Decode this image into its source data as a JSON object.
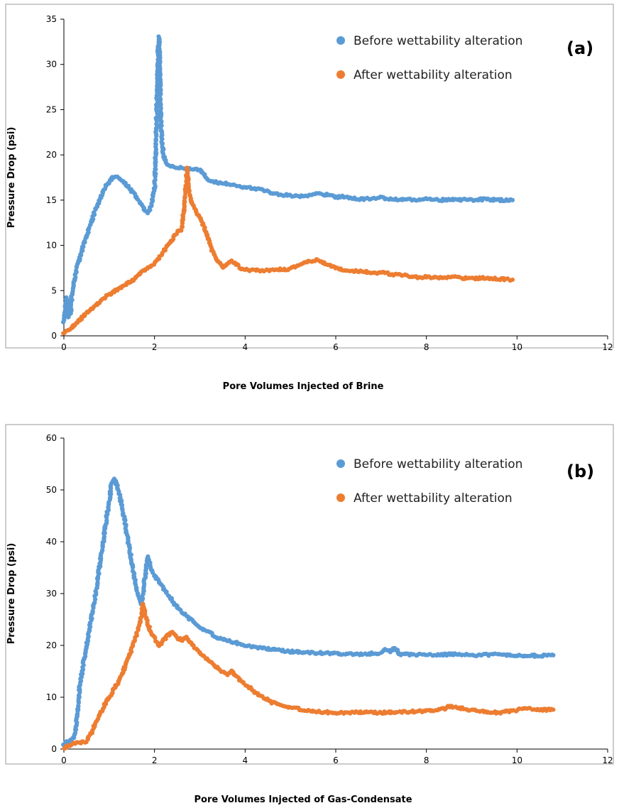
{
  "chart_data": [
    {
      "type": "scatter",
      "panel_label": "(a)",
      "xlabel": "Pore Volumes Injected of Brine",
      "ylabel": "Pressure Drop (psi)",
      "xlim": [
        0,
        12
      ],
      "ylim": [
        0,
        35
      ],
      "xticks": [
        "0",
        "2",
        "4",
        "6",
        "8",
        "10",
        "12"
      ],
      "yticks": [
        "0",
        "5",
        "10",
        "15",
        "20",
        "25",
        "30",
        "35"
      ],
      "grid": false,
      "legend_position": "top-right",
      "series": [
        {
          "name": "Before wettability alteration",
          "color": "#5B9BD5",
          "points": [
            [
              0,
              1.5
            ],
            [
              0.03,
              3.0
            ],
            [
              0.05,
              4.2
            ],
            [
              0.08,
              3.0
            ],
            [
              0.1,
              2.0
            ],
            [
              0.12,
              4.0
            ],
            [
              0.15,
              2.5
            ],
            [
              0.18,
              4.5
            ],
            [
              0.2,
              5.0
            ],
            [
              0.25,
              6.5
            ],
            [
              0.3,
              7.8
            ],
            [
              0.4,
              9.5
            ],
            [
              0.5,
              11.0
            ],
            [
              0.6,
              12.5
            ],
            [
              0.7,
              14.0
            ],
            [
              0.8,
              15.2
            ],
            [
              0.9,
              16.3
            ],
            [
              1.0,
              17.1
            ],
            [
              1.1,
              17.6
            ],
            [
              1.2,
              17.5
            ],
            [
              1.3,
              17.1
            ],
            [
              1.4,
              16.6
            ],
            [
              1.5,
              16.0
            ],
            [
              1.6,
              15.3
            ],
            [
              1.7,
              14.6
            ],
            [
              1.8,
              13.9
            ],
            [
              1.85,
              13.5
            ],
            [
              1.9,
              14.0
            ],
            [
              1.95,
              14.8
            ],
            [
              2.0,
              16.5
            ],
            [
              2.02,
              19.0
            ],
            [
              2.04,
              23.0
            ],
            [
              2.06,
              27.0
            ],
            [
              2.08,
              31.5
            ],
            [
              2.1,
              33.0
            ],
            [
              2.12,
              28.0
            ],
            [
              2.14,
              24.0
            ],
            [
              2.16,
              21.5
            ],
            [
              2.2,
              20.0
            ],
            [
              2.25,
              19.0
            ],
            [
              2.3,
              18.8
            ],
            [
              2.5,
              18.6
            ],
            [
              2.7,
              18.5
            ],
            [
              2.9,
              18.4
            ],
            [
              3.0,
              18.3
            ],
            [
              3.1,
              17.8
            ],
            [
              3.2,
              17.2
            ],
            [
              3.4,
              16.9
            ],
            [
              3.6,
              16.8
            ],
            [
              3.8,
              16.6
            ],
            [
              4.0,
              16.4
            ],
            [
              4.2,
              16.3
            ],
            [
              4.4,
              16.1
            ],
            [
              4.6,
              15.8
            ],
            [
              4.8,
              15.6
            ],
            [
              5.0,
              15.5
            ],
            [
              5.2,
              15.4
            ],
            [
              5.4,
              15.5
            ],
            [
              5.6,
              15.7
            ],
            [
              5.8,
              15.6
            ],
            [
              6.0,
              15.3
            ],
            [
              6.2,
              15.4
            ],
            [
              6.4,
              15.2
            ],
            [
              6.6,
              15.1
            ],
            [
              6.8,
              15.2
            ],
            [
              7.0,
              15.3
            ],
            [
              7.2,
              15.1
            ],
            [
              7.5,
              15.1
            ],
            [
              7.8,
              15.0
            ],
            [
              8.0,
              15.2
            ],
            [
              8.3,
              15.0
            ],
            [
              8.6,
              15.1
            ],
            [
              9.0,
              15.0
            ],
            [
              9.3,
              15.1
            ],
            [
              9.6,
              15.0
            ],
            [
              9.9,
              15.0
            ]
          ]
        },
        {
          "name": "After wettability alteration",
          "color": "#ED7D31",
          "points": [
            [
              0,
              0.3
            ],
            [
              0.1,
              0.6
            ],
            [
              0.2,
              1.0
            ],
            [
              0.3,
              1.5
            ],
            [
              0.4,
              2.0
            ],
            [
              0.5,
              2.5
            ],
            [
              0.6,
              3.0
            ],
            [
              0.7,
              3.4
            ],
            [
              0.8,
              3.8
            ],
            [
              0.9,
              4.2
            ],
            [
              1.0,
              4.6
            ],
            [
              1.1,
              4.9
            ],
            [
              1.2,
              5.2
            ],
            [
              1.3,
              5.5
            ],
            [
              1.4,
              5.8
            ],
            [
              1.5,
              6.1
            ],
            [
              1.6,
              6.5
            ],
            [
              1.7,
              7.0
            ],
            [
              1.8,
              7.4
            ],
            [
              1.9,
              7.7
            ],
            [
              2.0,
              8.0
            ],
            [
              2.1,
              8.6
            ],
            [
              2.2,
              9.3
            ],
            [
              2.3,
              10.0
            ],
            [
              2.4,
              10.8
            ],
            [
              2.5,
              11.5
            ],
            [
              2.6,
              11.8
            ],
            [
              2.65,
              14.0
            ],
            [
              2.7,
              17.0
            ],
            [
              2.72,
              18.5
            ],
            [
              2.75,
              16.5
            ],
            [
              2.8,
              15.0
            ],
            [
              2.9,
              14.0
            ],
            [
              3.0,
              13.0
            ],
            [
              3.1,
              12.0
            ],
            [
              3.2,
              10.5
            ],
            [
              3.3,
              9.0
            ],
            [
              3.4,
              8.2
            ],
            [
              3.5,
              7.6
            ],
            [
              3.6,
              8.0
            ],
            [
              3.7,
              8.3
            ],
            [
              3.8,
              7.9
            ],
            [
              3.9,
              7.5
            ],
            [
              4.0,
              7.3
            ],
            [
              4.3,
              7.2
            ],
            [
              4.6,
              7.3
            ],
            [
              5.0,
              7.4
            ],
            [
              5.2,
              7.8
            ],
            [
              5.4,
              8.2
            ],
            [
              5.6,
              8.4
            ],
            [
              5.8,
              7.9
            ],
            [
              6.0,
              7.5
            ],
            [
              6.3,
              7.2
            ],
            [
              6.6,
              7.1
            ],
            [
              6.9,
              6.9
            ],
            [
              7.0,
              7.1
            ],
            [
              7.2,
              6.8
            ],
            [
              7.5,
              6.7
            ],
            [
              7.8,
              6.5
            ],
            [
              8.0,
              6.5
            ],
            [
              8.3,
              6.4
            ],
            [
              8.6,
              6.5
            ],
            [
              9.0,
              6.3
            ],
            [
              9.3,
              6.4
            ],
            [
              9.6,
              6.3
            ],
            [
              9.9,
              6.2
            ]
          ]
        }
      ]
    },
    {
      "type": "scatter",
      "panel_label": "(b)",
      "xlabel": "Pore Volumes Injected of Gas-Condensate",
      "ylabel": "Pressure Drop (psi)",
      "xlim": [
        0,
        12
      ],
      "ylim": [
        0,
        60
      ],
      "xticks": [
        "0",
        "2",
        "4",
        "6",
        "8",
        "10",
        "12"
      ],
      "yticks": [
        "0",
        "10",
        "20",
        "30",
        "40",
        "50",
        "60"
      ],
      "grid": false,
      "legend_position": "top-right",
      "series": [
        {
          "name": "Before wettability alteration",
          "color": "#5B9BD5",
          "points": [
            [
              0,
              1.0
            ],
            [
              0.1,
              1.5
            ],
            [
              0.2,
              2.0
            ],
            [
              0.25,
              3.0
            ],
            [
              0.3,
              7.0
            ],
            [
              0.35,
              12.0
            ],
            [
              0.4,
              15.0
            ],
            [
              0.5,
              20.0
            ],
            [
              0.6,
              25.0
            ],
            [
              0.7,
              30.0
            ],
            [
              0.8,
              36.0
            ],
            [
              0.9,
              42.0
            ],
            [
              1.0,
              48.0
            ],
            [
              1.05,
              51.0
            ],
            [
              1.1,
              52.0
            ],
            [
              1.15,
              51.5
            ],
            [
              1.2,
              50.0
            ],
            [
              1.3,
              46.0
            ],
            [
              1.4,
              41.0
            ],
            [
              1.5,
              36.0
            ],
            [
              1.6,
              31.0
            ],
            [
              1.7,
              28.0
            ],
            [
              1.75,
              30.0
            ],
            [
              1.8,
              34.0
            ],
            [
              1.85,
              37.0
            ],
            [
              1.9,
              35.5
            ],
            [
              2.0,
              33.5
            ],
            [
              2.2,
              31.0
            ],
            [
              2.4,
              28.5
            ],
            [
              2.6,
              26.5
            ],
            [
              2.8,
              25.0
            ],
            [
              3.0,
              23.5
            ],
            [
              3.2,
              22.5
            ],
            [
              3.4,
              21.5
            ],
            [
              3.6,
              21.0
            ],
            [
              3.8,
              20.5
            ],
            [
              4.0,
              20.0
            ],
            [
              4.3,
              19.6
            ],
            [
              4.6,
              19.2
            ],
            [
              5.0,
              18.8
            ],
            [
              5.5,
              18.6
            ],
            [
              6.0,
              18.4
            ],
            [
              6.5,
              18.3
            ],
            [
              7.0,
              18.5
            ],
            [
              7.1,
              19.3
            ],
            [
              7.2,
              18.8
            ],
            [
              7.3,
              19.6
            ],
            [
              7.4,
              18.3
            ],
            [
              7.8,
              18.2
            ],
            [
              8.2,
              18.2
            ],
            [
              8.6,
              18.3
            ],
            [
              9.0,
              18.1
            ],
            [
              9.5,
              18.2
            ],
            [
              10.0,
              18.1
            ],
            [
              10.5,
              18.0
            ],
            [
              10.8,
              18.1
            ]
          ]
        },
        {
          "name": "After wettability alteration",
          "color": "#ED7D31",
          "points": [
            [
              0,
              0.3
            ],
            [
              0.1,
              0.6
            ],
            [
              0.2,
              1.0
            ],
            [
              0.3,
              1.2
            ],
            [
              0.4,
              1.3
            ],
            [
              0.5,
              1.5
            ],
            [
              0.6,
              3.0
            ],
            [
              0.7,
              5.0
            ],
            [
              0.8,
              7.0
            ],
            [
              0.9,
              8.5
            ],
            [
              1.0,
              10.0
            ],
            [
              1.1,
              11.5
            ],
            [
              1.2,
              13.0
            ],
            [
              1.3,
              15.0
            ],
            [
              1.4,
              17.0
            ],
            [
              1.5,
              19.5
            ],
            [
              1.6,
              22.0
            ],
            [
              1.7,
              25.0
            ],
            [
              1.75,
              28.0
            ],
            [
              1.8,
              25.5
            ],
            [
              1.9,
              23.0
            ],
            [
              2.0,
              21.5
            ],
            [
              2.1,
              20.0
            ],
            [
              2.2,
              21.0
            ],
            [
              2.3,
              22.0
            ],
            [
              2.4,
              22.5
            ],
            [
              2.5,
              21.5
            ],
            [
              2.6,
              21.0
            ],
            [
              2.7,
              21.5
            ],
            [
              2.8,
              20.5
            ],
            [
              3.0,
              18.5
            ],
            [
              3.2,
              17.0
            ],
            [
              3.4,
              15.5
            ],
            [
              3.6,
              14.5
            ],
            [
              3.7,
              15.0
            ],
            [
              3.8,
              14.0
            ],
            [
              4.0,
              12.5
            ],
            [
              4.3,
              10.5
            ],
            [
              4.6,
              9.0
            ],
            [
              5.0,
              8.0
            ],
            [
              5.5,
              7.3
            ],
            [
              6.0,
              7.0
            ],
            [
              6.5,
              7.1
            ],
            [
              7.0,
              7.0
            ],
            [
              7.5,
              7.2
            ],
            [
              8.0,
              7.3
            ],
            [
              8.4,
              7.8
            ],
            [
              8.5,
              8.3
            ],
            [
              8.7,
              8.0
            ],
            [
              9.0,
              7.5
            ],
            [
              9.3,
              7.2
            ],
            [
              9.6,
              7.0
            ],
            [
              10.0,
              7.5
            ],
            [
              10.2,
              7.9
            ],
            [
              10.5,
              7.6
            ],
            [
              10.8,
              7.6
            ]
          ]
        }
      ]
    }
  ]
}
